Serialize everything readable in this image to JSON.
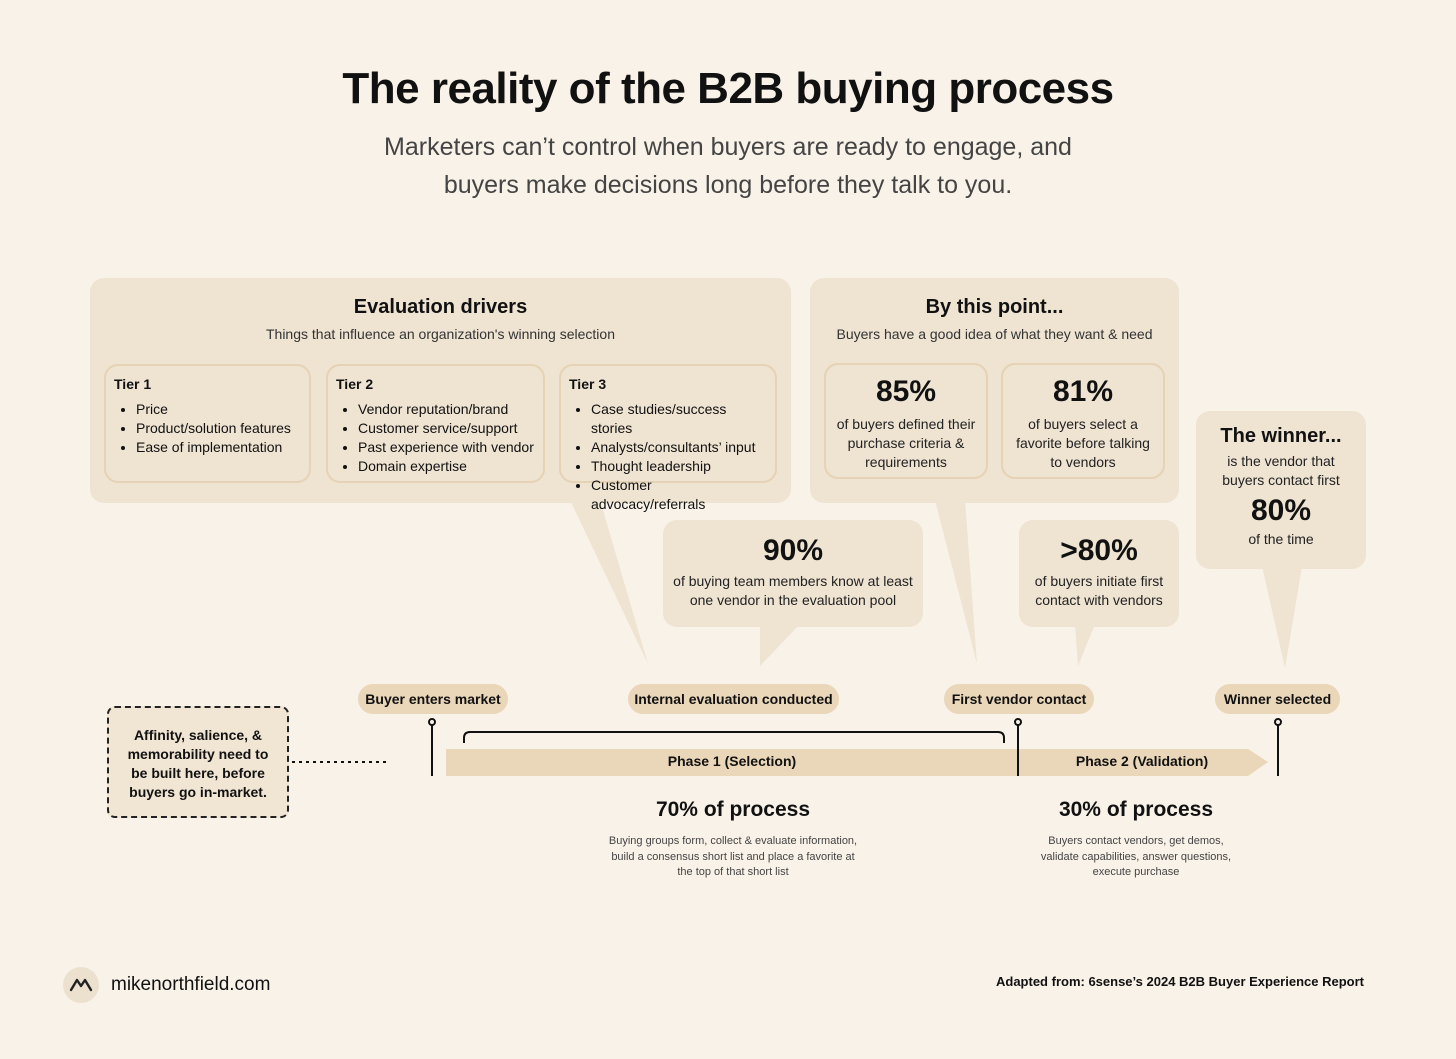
{
  "header": {
    "title": "The reality of the B2B buying process",
    "subtitle_line1": "Marketers can’t control when buyers are ready to engage, and",
    "subtitle_line2": "buyers make decisions long before they talk to you."
  },
  "evaluation_drivers": {
    "title": "Evaluation drivers",
    "subtitle": "Things that influence an organization's winning selection",
    "tiers": [
      {
        "name": "Tier 1",
        "items": [
          "Price",
          "Product/solution features",
          "Ease of implementation"
        ]
      },
      {
        "name": "Tier 2",
        "items": [
          "Vendor reputation/brand",
          "Customer service/support",
          "Past experience with vendor",
          "Domain expertise"
        ]
      },
      {
        "name": "Tier 3",
        "items": [
          "Case studies/success stories",
          "Analysts/consultants’ input",
          "Thought leadership",
          "Customer advocacy/referrals"
        ]
      }
    ]
  },
  "by_this_point": {
    "title": "By this point...",
    "subtitle": "Buyers have a good idea of what they want & need",
    "stats": [
      {
        "value": "85%",
        "line1": "of buyers defined their",
        "line2": "purchase criteria &",
        "line3": "requirements"
      },
      {
        "value": "81%",
        "line1": "of buyers select a",
        "line2": "favorite before talking",
        "line3": "to vendors"
      }
    ]
  },
  "callout_90": {
    "value": "90%",
    "line1": "of buying team members know at least",
    "line2": "one vendor in the evaluation pool"
  },
  "callout_80": {
    "value": ">80%",
    "line1": "of buyers initiate first",
    "line2": "contact with vendors"
  },
  "winner": {
    "title": "The winner...",
    "line1": "is the vendor that",
    "line2": "buyers contact first",
    "value": "80%",
    "line3": "of the time"
  },
  "milestones": [
    "Buyer enters market",
    "Internal evaluation conducted",
    "First vendor contact",
    "Winner selected"
  ],
  "phases": {
    "phase1": {
      "label": "Phase 1 (Selection)",
      "pct": "70% of process",
      "desc1": "Buying groups form, collect & evaluate information,",
      "desc2": "build a consensus short list and place a favorite at",
      "desc3": "the top of that short list"
    },
    "phase2": {
      "label": "Phase 2 (Validation)",
      "pct": "30% of process",
      "desc1": "Buyers contact vendors, get demos,",
      "desc2": "validate capabilities, answer questions,",
      "desc3": "execute purchase"
    }
  },
  "note": {
    "line1": "Affinity, salience, &",
    "line2": "memorability need to",
    "line3": "be built here, before",
    "line4": "buyers go in-market."
  },
  "footer": {
    "site": "mikenorthfield.com",
    "source": "Adapted from: 6sense’s 2024 B2B Buyer Experience Report"
  }
}
